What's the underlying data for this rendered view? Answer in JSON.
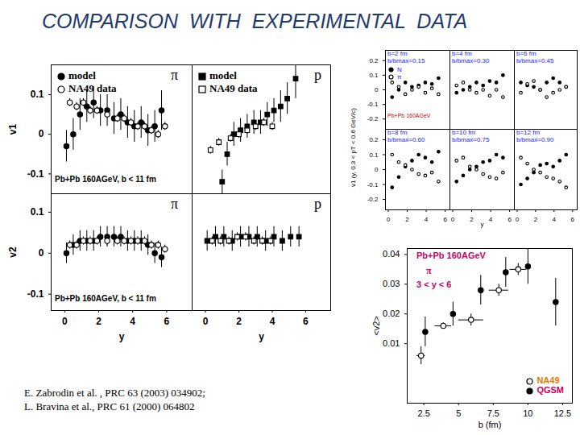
{
  "title": "COMPARISON  WITH  EXPERIMENTAL  DATA",
  "references": [
    "E. Zabrodin et al. , PRC 63 (2003) 034902;",
    "L. Bravina et al., PRC 61 (2000) 064802"
  ],
  "chart_data": [
    {
      "type": "scatter",
      "y_label": "v1",
      "annotations": [
        "π",
        "Pb+Pb 160AGeV, b < 11 fm"
      ],
      "xlim": [
        -0.8,
        7.5
      ],
      "xticks": [
        0,
        2,
        4,
        6
      ],
      "ylim": [
        -0.15,
        0.175
      ],
      "yticks": [
        -0.1,
        0,
        0.1
      ],
      "tick_labels": "y",
      "legend": "top-left",
      "series": [
        {
          "name": "model",
          "marker": "circle",
          "color": "#000000",
          "x": [
            0.1,
            0.5,
            0.9,
            1.3,
            1.7,
            2.1,
            2.5,
            2.9,
            3.3,
            3.7,
            4.1,
            4.5,
            4.9,
            5.3,
            5.7
          ],
          "values": [
            -0.03,
            0.0,
            0.05,
            0.07,
            0.08,
            0.06,
            0.06,
            0.04,
            0.05,
            0.03,
            0.02,
            0.03,
            0.01,
            0.02,
            0.06
          ],
          "errors": [
            0.04,
            0.04,
            0.04,
            0.04,
            0.04,
            0.04,
            0.04,
            0.04,
            0.04,
            0.04,
            0.04,
            0.04,
            0.04,
            0.04,
            0.05
          ]
        },
        {
          "name": "NA49 data",
          "marker": "open_circle",
          "color": "#000000",
          "x": [
            0.3,
            0.7,
            1.1,
            1.5,
            1.9,
            2.5,
            3.1,
            3.5,
            3.9,
            4.3,
            4.7,
            5.1,
            5.5,
            5.9
          ],
          "values": [
            0.08,
            0.07,
            0.08,
            0.06,
            0.06,
            0.05,
            0.04,
            0.04,
            0.03,
            0.02,
            0.02,
            0.01,
            0.0,
            0.02
          ],
          "errors": [
            0.01,
            0.01,
            0.01,
            0.01,
            0.01,
            0.01,
            0.01,
            0.01,
            0.01,
            0.01,
            0.01,
            0.01,
            0.01,
            0.01
          ]
        }
      ]
    },
    {
      "type": "scatter",
      "annotations": [
        "p"
      ],
      "xlim": [
        -0.8,
        7.5
      ],
      "xticks": [
        0,
        2,
        4,
        6
      ],
      "ylim": [
        -0.15,
        0.175
      ],
      "yticks": [
        -0.1,
        0,
        0.1
      ],
      "tick_labels": false,
      "legend": "top-left",
      "series": [
        {
          "name": "model",
          "marker": "square",
          "color": "#000000",
          "x": [
            1.0,
            1.3,
            1.7,
            2.1,
            2.5,
            2.9,
            3.3,
            3.7,
            4.1,
            4.5,
            4.9,
            5.4
          ],
          "values": [
            -0.12,
            -0.05,
            0.0,
            0.01,
            0.02,
            0.03,
            0.03,
            0.05,
            0.06,
            0.07,
            0.09,
            0.14
          ],
          "errors": [
            0.03,
            0.03,
            0.03,
            0.03,
            0.03,
            0.03,
            0.03,
            0.03,
            0.03,
            0.04,
            0.04,
            0.05
          ]
        },
        {
          "name": "NA49 data",
          "marker": "open_square",
          "color": "#000000",
          "x": [
            0.3,
            0.8,
            1.5,
            2.0,
            2.5,
            3.0,
            3.5,
            4.0
          ],
          "values": [
            -0.04,
            -0.02,
            -0.01,
            0.0,
            0.01,
            0.02,
            0.03,
            0.02
          ],
          "errors": [
            0.01,
            0.01,
            0.01,
            0.01,
            0.01,
            0.01,
            0.01,
            0.01
          ]
        }
      ]
    },
    {
      "type": "scatter",
      "y_label": "v2",
      "x_label": "y",
      "annotations": [
        "π",
        "Pb+Pb 160AGeV, b < 11 fm"
      ],
      "xlim": [
        -0.8,
        7.5
      ],
      "xticks": [
        0,
        2,
        4,
        6
      ],
      "ylim": [
        -0.14,
        0.145
      ],
      "yticks": [
        -0.1,
        0,
        0.1
      ],
      "series": [
        {
          "name": "model",
          "marker": "circle",
          "color": "#000000",
          "x": [
            0.1,
            0.5,
            0.9,
            1.3,
            1.7,
            2.1,
            2.5,
            2.9,
            3.3,
            3.7,
            4.1,
            4.5,
            4.9,
            5.3,
            5.7
          ],
          "values": [
            0.0,
            0.02,
            0.03,
            0.03,
            0.03,
            0.04,
            0.04,
            0.04,
            0.04,
            0.03,
            0.03,
            0.03,
            0.02,
            0.0,
            -0.01
          ],
          "errors": [
            0.025,
            0.025,
            0.025,
            0.025,
            0.025,
            0.025,
            0.025,
            0.025,
            0.025,
            0.025,
            0.025,
            0.025,
            0.025,
            0.025,
            0.025
          ]
        },
        {
          "name": "NA49 data",
          "marker": "open_circle",
          "color": "#000000",
          "x": [
            0.3,
            0.7,
            1.1,
            1.5,
            1.9,
            2.5,
            3.1,
            3.5,
            3.9,
            4.3,
            4.7,
            5.1,
            5.5,
            5.9
          ],
          "values": [
            0.02,
            0.02,
            0.03,
            0.03,
            0.03,
            0.03,
            0.03,
            0.03,
            0.03,
            0.03,
            0.03,
            0.02,
            0.02,
            0.01
          ],
          "errors": [
            0.01,
            0.01,
            0.01,
            0.01,
            0.01,
            0.01,
            0.01,
            0.01,
            0.01,
            0.01,
            0.01,
            0.01,
            0.01,
            0.01
          ]
        }
      ]
    },
    {
      "type": "scatter",
      "x_label": "y",
      "annotations": [
        "p"
      ],
      "xlim": [
        -0.8,
        7.5
      ],
      "xticks": [
        0,
        2,
        4,
        6
      ],
      "ylim": [
        -0.14,
        0.145
      ],
      "yticks": [
        -0.1,
        0,
        0.1
      ],
      "tick_labels": "x",
      "series": [
        {
          "name": "model",
          "marker": "square",
          "color": "#000000",
          "x": [
            0.1,
            0.6,
            1.1,
            1.6,
            2.1,
            2.6,
            3.1,
            3.6,
            4.1,
            4.6,
            5.1,
            5.6
          ],
          "values": [
            0.03,
            0.04,
            0.04,
            0.03,
            0.04,
            0.04,
            0.04,
            0.03,
            0.04,
            0.03,
            0.04,
            0.04
          ],
          "errors": [
            0.025,
            0.025,
            0.025,
            0.025,
            0.025,
            0.025,
            0.025,
            0.025,
            0.025,
            0.025,
            0.025,
            0.025
          ]
        },
        {
          "name": "NA49 data",
          "marker": "open_square",
          "color": "#000000",
          "x": [
            0.4,
            0.9,
            1.4,
            1.9,
            2.4,
            2.9,
            3.4,
            3.9
          ],
          "values": [
            0.03,
            0.03,
            0.03,
            0.04,
            0.04,
            0.03,
            0.03,
            0.03
          ],
          "errors": [
            0.01,
            0.01,
            0.01,
            0.01,
            0.01,
            0.01,
            0.01,
            0.01
          ]
        }
      ]
    },
    {
      "type": "scatter",
      "y_label": "v1 (y, 0.3 < pT < 0.6 GeV/c)",
      "annotations": [
        "b=2 fm",
        "b/bmax=0.15",
        "Pb+Pb 160AGeV"
      ],
      "xlim": [
        -0.3,
        6.5
      ],
      "xticks": [
        0,
        2,
        4,
        6
      ],
      "ylim": [
        -0.27,
        0.27
      ],
      "yticks": [
        -0.2,
        -0.1,
        0,
        0.1,
        0.2
      ],
      "tick_labels": "y",
      "legend": "top-left",
      "series": [
        {
          "name": "N",
          "marker": "circle",
          "color": "#000000",
          "x": [
            0.4,
            1.1,
            1.8,
            2.5,
            3.2,
            3.9,
            4.6,
            5.3
          ],
          "values": [
            -0.05,
            0.0,
            0.05,
            0.02,
            0.03,
            0.05,
            0.04,
            0.08
          ]
        },
        {
          "name": "π",
          "marker": "open_circle",
          "color": "#000000",
          "x": [
            0.4,
            1.1,
            1.8,
            2.5,
            3.2,
            3.9,
            4.6,
            5.3
          ],
          "values": [
            0.05,
            0.02,
            -0.03,
            0.0,
            0.02,
            -0.02,
            0.01,
            -0.03
          ]
        }
      ]
    },
    {
      "type": "scatter",
      "annotations": [
        "b=4 fm",
        "b/bmax=0.30"
      ],
      "xlim": [
        -0.3,
        6.5
      ],
      "xticks": [
        0,
        2,
        4,
        6
      ],
      "ylim": [
        -0.27,
        0.27
      ],
      "yticks": [
        -0.2,
        -0.1,
        0,
        0.1,
        0.2
      ],
      "tick_labels": false,
      "series": [
        {
          "name": "N",
          "marker": "circle",
          "color": "#000000",
          "x": [
            0.4,
            1.1,
            1.8,
            2.5,
            3.2,
            3.9,
            4.6,
            5.3
          ],
          "values": [
            -0.02,
            0.0,
            0.02,
            0.05,
            0.03,
            0.06,
            0.05,
            0.1
          ]
        },
        {
          "name": "π",
          "marker": "open_circle",
          "color": "#000000",
          "x": [
            0.4,
            1.1,
            1.8,
            2.5,
            3.2,
            3.9,
            4.6,
            5.3
          ],
          "values": [
            0.03,
            0.05,
            0.0,
            -0.02,
            0.0,
            -0.04,
            0.0,
            -0.05
          ]
        }
      ]
    },
    {
      "type": "scatter",
      "annotations": [
        "b=6 fm",
        "b/bmax=0.45"
      ],
      "xlim": [
        -0.3,
        6.5
      ],
      "xticks": [
        0,
        2,
        4,
        6
      ],
      "ylim": [
        -0.27,
        0.27
      ],
      "yticks": [
        -0.2,
        -0.1,
        0,
        0.1,
        0.2
      ],
      "tick_labels": false,
      "series": [
        {
          "name": "N",
          "marker": "circle",
          "color": "#000000",
          "x": [
            0.4,
            1.1,
            1.8,
            2.5,
            3.2,
            3.9,
            4.6,
            5.3
          ],
          "values": [
            0.05,
            0.03,
            0.02,
            0.0,
            0.05,
            0.08,
            0.05,
            0.02
          ]
        },
        {
          "name": "π",
          "marker": "open_circle",
          "color": "#000000",
          "x": [
            0.4,
            1.1,
            1.8,
            2.5,
            3.2,
            3.9,
            4.6,
            5.3
          ],
          "values": [
            -0.02,
            0.04,
            0.06,
            0.0,
            -0.05,
            -0.02,
            0.0,
            0.02
          ]
        }
      ]
    },
    {
      "type": "scatter",
      "annotations": [
        "b=8 fm",
        "b/bmax=0.60"
      ],
      "xlim": [
        -0.3,
        6.5
      ],
      "xticks": [
        0,
        2,
        4,
        6
      ],
      "ylim": [
        -0.27,
        0.27
      ],
      "yticks": [
        -0.2,
        -0.1,
        0,
        0.1,
        0.2
      ],
      "series": [
        {
          "name": "N",
          "marker": "circle",
          "color": "#000000",
          "x": [
            0.4,
            1.1,
            1.8,
            2.5,
            3.2,
            3.9,
            4.6,
            5.3
          ],
          "values": [
            -0.12,
            -0.05,
            0.02,
            0.06,
            0.1,
            0.08,
            0.05,
            0.12
          ]
        },
        {
          "name": "π",
          "marker": "open_circle",
          "color": "#000000",
          "x": [
            0.4,
            1.1,
            1.8,
            2.5,
            3.2,
            3.9,
            4.6,
            5.3
          ],
          "values": [
            0.1,
            0.05,
            0.03,
            0.0,
            -0.03,
            -0.04,
            -0.02,
            -0.08
          ]
        }
      ]
    },
    {
      "type": "scatter",
      "x_label": "y",
      "annotations": [
        "b=10 fm",
        "b/bmax=0.75"
      ],
      "xlim": [
        -0.3,
        6.5
      ],
      "xticks": [
        0,
        2,
        4,
        6
      ],
      "ylim": [
        -0.27,
        0.27
      ],
      "yticks": [
        -0.2,
        -0.1,
        0,
        0.1,
        0.2
      ],
      "tick_labels": "x",
      "series": [
        {
          "name": "N",
          "marker": "circle",
          "color": "#000000",
          "x": [
            0.4,
            1.1,
            1.8,
            2.5,
            3.2,
            3.9,
            4.6,
            5.3
          ],
          "values": [
            -0.08,
            -0.04,
            0.0,
            0.02,
            0.05,
            0.06,
            0.1,
            0.08
          ]
        },
        {
          "name": "π",
          "marker": "open_circle",
          "color": "#000000",
          "x": [
            0.4,
            1.1,
            1.8,
            2.5,
            3.2,
            3.9,
            4.6,
            5.3
          ],
          "values": [
            0.06,
            0.08,
            0.02,
            0.0,
            -0.03,
            -0.05,
            -0.06,
            -0.02
          ]
        }
      ]
    },
    {
      "type": "scatter",
      "annotations": [
        "b=12 fm",
        "b/bmax=0.90"
      ],
      "xlim": [
        -0.3,
        6.5
      ],
      "xticks": [
        0,
        2,
        4,
        6
      ],
      "ylim": [
        -0.27,
        0.27
      ],
      "yticks": [
        -0.2,
        -0.1,
        0,
        0.1,
        0.2
      ],
      "tick_labels": "x",
      "series": [
        {
          "name": "N",
          "marker": "circle",
          "color": "#000000",
          "x": [
            0.4,
            1.1,
            1.8,
            2.5,
            3.2,
            3.9,
            4.6,
            5.3
          ],
          "values": [
            -0.1,
            -0.06,
            -0.02,
            0.03,
            0.04,
            0.02,
            0.06,
            0.1
          ]
        },
        {
          "name": "π",
          "marker": "open_circle",
          "color": "#000000",
          "x": [
            0.4,
            1.1,
            1.8,
            2.5,
            3.2,
            3.9,
            4.6,
            5.3
          ],
          "values": [
            0.08,
            0.04,
            0.0,
            -0.02,
            -0.05,
            -0.06,
            -0.08,
            -0.12
          ]
        }
      ]
    },
    {
      "type": "scatter",
      "y_label": "<v2>",
      "x_label": "b (fm)",
      "annotations": [
        "Pb+Pb 160AGeV",
        "π",
        "3 < y < 6"
      ],
      "xlim": [
        1.3,
        13.2
      ],
      "xticks": [
        2.5,
        5,
        7.5,
        10,
        12.5
      ],
      "ylim": [
        -0.01,
        0.042
      ],
      "yticks": [
        0.01,
        0.02,
        0.03,
        0.04
      ],
      "legend": "bottom-right",
      "series": [
        {
          "name": "NA49",
          "marker": "open_circle",
          "color": "#000000",
          "x": [
            2.3,
            3.9,
            5.9,
            7.9,
            9.3
          ],
          "values": [
            0.006,
            0.016,
            0.018,
            0.028,
            0.035
          ],
          "errors": [
            0.003,
            0.001,
            0.002,
            0.002,
            0.002
          ],
          "x_errors": [
            0.3,
            0.6,
            0.9,
            0.7,
            0.6
          ]
        },
        {
          "name": "QGSM",
          "marker": "circle",
          "color": "#000000",
          "x": [
            2.6,
            4.6,
            6.6,
            8.4,
            10.0,
            12.0
          ],
          "values": [
            0.014,
            0.02,
            0.028,
            0.034,
            0.036,
            0.024
          ],
          "errors": [
            0.005,
            0.004,
            0.005,
            0.005,
            0.006,
            0.008
          ]
        }
      ]
    }
  ]
}
